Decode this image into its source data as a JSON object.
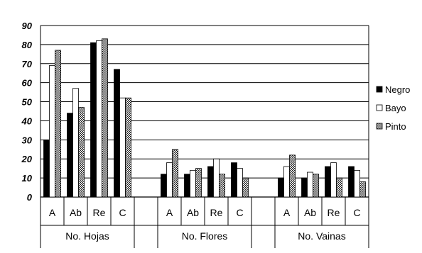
{
  "chart_data": {
    "type": "bar",
    "title": "",
    "xlabel": "",
    "ylabel": "",
    "ylim": [
      0,
      90
    ],
    "yticks": [
      0,
      10,
      20,
      30,
      40,
      50,
      60,
      70,
      80,
      90
    ],
    "grid": true,
    "legend_position": "right",
    "groups": [
      {
        "label": "No. Hojas",
        "categories": [
          "A",
          "Ab",
          "Re",
          "C"
        ]
      },
      {
        "label": "No. Flores",
        "categories": [
          "A",
          "Ab",
          "Re",
          "C"
        ]
      },
      {
        "label": "No. Vainas",
        "categories": [
          "A",
          "Ab",
          "Re",
          "C"
        ]
      }
    ],
    "series": [
      {
        "name": "Negro",
        "pattern": "black",
        "values": [
          30,
          44,
          81,
          67,
          12,
          12,
          16,
          18,
          10,
          10,
          16,
          16
        ]
      },
      {
        "name": "Bayo",
        "pattern": "white",
        "values": [
          69,
          57,
          82,
          52,
          18,
          14,
          20,
          15,
          16,
          13,
          18,
          14
        ]
      },
      {
        "name": "Pinto",
        "pattern": "checker",
        "values": [
          77,
          47,
          83,
          52,
          25,
          15,
          12,
          10,
          22,
          12,
          10,
          8
        ]
      }
    ]
  }
}
